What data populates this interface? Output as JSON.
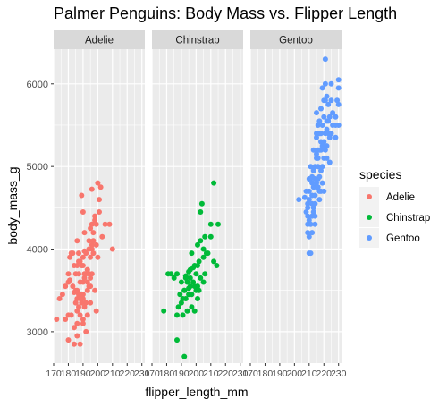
{
  "chart_data": {
    "type": "scatter",
    "title": "Palmer Penguins: Body Mass vs. Flipper Length",
    "xlabel": "flipper_length_mm",
    "ylabel": "body_mass_g",
    "facet_by": "species",
    "xlim": [
      170,
      232
    ],
    "ylim": [
      2620,
      6420
    ],
    "x_ticks": [
      170,
      180,
      190,
      200,
      210,
      220,
      230
    ],
    "y_ticks": [
      3000,
      4000,
      5000,
      6000
    ],
    "grid": true,
    "legend": {
      "title": "species",
      "position": "right",
      "entries": [
        {
          "label": "Adelie",
          "color": "#F8766D"
        },
        {
          "label": "Chinstrap",
          "color": "#00BA38"
        },
        {
          "label": "Gentoo",
          "color": "#619CFF"
        }
      ]
    },
    "panels": [
      {
        "label": "Adelie",
        "color": "#F8766D",
        "points": [
          [
            172,
            3150
          ],
          [
            174,
            3400
          ],
          [
            176,
            3450
          ],
          [
            178,
            3550
          ],
          [
            178,
            3150
          ],
          [
            180,
            3700
          ],
          [
            180,
            3200
          ],
          [
            180,
            3600
          ],
          [
            181,
            3625
          ],
          [
            181,
            3900
          ],
          [
            182,
            3950
          ],
          [
            182,
            3200
          ],
          [
            183,
            3550
          ],
          [
            183,
            3950
          ],
          [
            184,
            3800
          ],
          [
            184,
            3050
          ],
          [
            184,
            3475
          ],
          [
            185,
            3700
          ],
          [
            185,
            3350
          ],
          [
            185,
            3500
          ],
          [
            186,
            3500
          ],
          [
            186,
            3800
          ],
          [
            186,
            3100
          ],
          [
            186,
            3250
          ],
          [
            187,
            3450
          ],
          [
            187,
            3950
          ],
          [
            187,
            3300
          ],
          [
            187,
            3700
          ],
          [
            187,
            3850
          ],
          [
            188,
            3400
          ],
          [
            188,
            3200
          ],
          [
            188,
            3600
          ],
          [
            189,
            3350
          ],
          [
            189,
            4650
          ],
          [
            189,
            3800
          ],
          [
            189,
            3450
          ],
          [
            190,
            3450
          ],
          [
            190,
            3150
          ],
          [
            190,
            3600
          ],
          [
            190,
            3900
          ],
          [
            190,
            3800
          ],
          [
            190,
            3100
          ],
          [
            191,
            3700
          ],
          [
            191,
            3300
          ],
          [
            191,
            3650
          ],
          [
            191,
            3975
          ],
          [
            191,
            4200
          ],
          [
            192,
            3350
          ],
          [
            192,
            3700
          ],
          [
            192,
            3000
          ],
          [
            193,
            3750
          ],
          [
            193,
            3600
          ],
          [
            193,
            3200
          ],
          [
            193,
            3500
          ],
          [
            194,
            3700
          ],
          [
            194,
            4000
          ],
          [
            195,
            3550
          ],
          [
            195,
            3900
          ],
          [
            195,
            3350
          ],
          [
            195,
            3650
          ],
          [
            195,
            4250
          ],
          [
            196,
            4000
          ],
          [
            196,
            3700
          ],
          [
            196,
            4050
          ],
          [
            196,
            4300
          ],
          [
            197,
            4100
          ],
          [
            197,
            4200
          ],
          [
            198,
            3500
          ],
          [
            198,
            4400
          ],
          [
            199,
            4050
          ],
          [
            199,
            4300
          ],
          [
            200,
            3900
          ],
          [
            201,
            4450
          ],
          [
            201,
            4600
          ],
          [
            202,
            4750
          ],
          [
            205,
            4300
          ],
          [
            208,
            4300
          ],
          [
            210,
            4000
          ],
          [
            180,
            2900
          ],
          [
            184,
            2850
          ],
          [
            186,
            3400
          ],
          [
            188,
            3850
          ],
          [
            190,
            4450
          ],
          [
            192,
            3950
          ],
          [
            194,
            4100
          ],
          [
            196,
            4725
          ],
          [
            198,
            4350
          ],
          [
            200,
            4800
          ],
          [
            186,
            4100
          ],
          [
            190,
            3400
          ],
          [
            194,
            3550
          ],
          [
            197,
            3950
          ],
          [
            199,
            3250
          ],
          [
            203,
            4150
          ],
          [
            186,
            2950
          ],
          [
            188,
            2850
          ]
        ]
      },
      {
        "label": "Chinstrap",
        "color": "#00BA38",
        "points": [
          [
            178,
            3250
          ],
          [
            181,
            3700
          ],
          [
            183,
            3700
          ],
          [
            185,
            3650
          ],
          [
            187,
            3700
          ],
          [
            187,
            2900
          ],
          [
            188,
            3300
          ],
          [
            189,
            3450
          ],
          [
            190,
            3350
          ],
          [
            190,
            3600
          ],
          [
            191,
            3400
          ],
          [
            191,
            3200
          ],
          [
            192,
            3500
          ],
          [
            192,
            2700
          ],
          [
            193,
            3650
          ],
          [
            193,
            3400
          ],
          [
            194,
            3600
          ],
          [
            194,
            3250
          ],
          [
            195,
            3450
          ],
          [
            195,
            3725
          ],
          [
            195,
            3525
          ],
          [
            196,
            3650
          ],
          [
            196,
            3550
          ],
          [
            197,
            3450
          ],
          [
            197,
            3300
          ],
          [
            198,
            3775
          ],
          [
            198,
            3600
          ],
          [
            199,
            3800
          ],
          [
            199,
            3250
          ],
          [
            200,
            3500
          ],
          [
            200,
            3700
          ],
          [
            201,
            3550
          ],
          [
            201,
            3400
          ],
          [
            201,
            4050
          ],
          [
            202,
            3850
          ],
          [
            202,
            3500
          ],
          [
            203,
            4100
          ],
          [
            203,
            3650
          ],
          [
            205,
            4000
          ],
          [
            205,
            3900
          ],
          [
            206,
            4150
          ],
          [
            206,
            3700
          ],
          [
            207,
            3950
          ],
          [
            210,
            4300
          ],
          [
            212,
            3850
          ],
          [
            212,
            4800
          ],
          [
            214,
            3800
          ],
          [
            215,
            4300
          ],
          [
            196,
            3750
          ],
          [
            197,
            3950
          ],
          [
            199,
            3550
          ],
          [
            201,
            3800
          ],
          [
            203,
            4450
          ],
          [
            204,
            4550
          ],
          [
            205,
            3600
          ],
          [
            208,
            3950
          ],
          [
            210,
            4150
          ],
          [
            192,
            3500
          ],
          [
            193,
            3675
          ],
          [
            187,
            3200
          ]
        ]
      },
      {
        "label": "Gentoo",
        "color": "#619CFF",
        "points": [
          [
            203,
            4600
          ],
          [
            207,
            4625
          ],
          [
            208,
            4700
          ],
          [
            209,
            4400
          ],
          [
            209,
            4550
          ],
          [
            209,
            4500
          ],
          [
            210,
            4150
          ],
          [
            210,
            4700
          ],
          [
            210,
            4600
          ],
          [
            210,
            4350
          ],
          [
            210,
            3950
          ],
          [
            211,
            4850
          ],
          [
            211,
            4300
          ],
          [
            212,
            4875
          ],
          [
            212,
            4550
          ],
          [
            212,
            4650
          ],
          [
            212,
            4800
          ],
          [
            213,
            4500
          ],
          [
            213,
            4750
          ],
          [
            213,
            4450
          ],
          [
            214,
            4400
          ],
          [
            214,
            4650
          ],
          [
            214,
            4850
          ],
          [
            214,
            5000
          ],
          [
            215,
            4750
          ],
          [
            215,
            5150
          ],
          [
            215,
            5400
          ],
          [
            215,
            4800
          ],
          [
            215,
            5100
          ],
          [
            215,
            5650
          ],
          [
            216,
            4850
          ],
          [
            216,
            5000
          ],
          [
            216,
            4750
          ],
          [
            216,
            5100
          ],
          [
            217,
            5200
          ],
          [
            217,
            4875
          ],
          [
            217,
            4700
          ],
          [
            217,
            5400
          ],
          [
            217,
            4600
          ],
          [
            218,
            5300
          ],
          [
            218,
            4700
          ],
          [
            218,
            4950
          ],
          [
            218,
            5700
          ],
          [
            219,
            5000
          ],
          [
            219,
            5500
          ],
          [
            219,
            5250
          ],
          [
            220,
            5100
          ],
          [
            220,
            5300
          ],
          [
            220,
            5800
          ],
          [
            220,
            4700
          ],
          [
            221,
            5800
          ],
          [
            221,
            5200
          ],
          [
            221,
            5400
          ],
          [
            221,
            6300
          ],
          [
            222,
            5550
          ],
          [
            222,
            5100
          ],
          [
            222,
            5850
          ],
          [
            222,
            5250
          ],
          [
            223,
            5550
          ],
          [
            223,
            5400
          ],
          [
            224,
            5350
          ],
          [
            224,
            5600
          ],
          [
            225,
            5800
          ],
          [
            225,
            5400
          ],
          [
            226,
            5650
          ],
          [
            228,
            5500
          ],
          [
            228,
            5600
          ],
          [
            229,
            5800
          ],
          [
            230,
            5500
          ],
          [
            230,
            6050
          ],
          [
            230,
            5950
          ],
          [
            230,
            5750
          ],
          [
            208,
            4450
          ],
          [
            209,
            4200
          ],
          [
            210,
            4850
          ],
          [
            211,
            5000
          ],
          [
            212,
            4400
          ],
          [
            213,
            5200
          ],
          [
            214,
            4300
          ],
          [
            215,
            5350
          ],
          [
            216,
            5200
          ],
          [
            217,
            5550
          ],
          [
            218,
            5400
          ],
          [
            219,
            5950
          ],
          [
            220,
            5600
          ],
          [
            221,
            6000
          ],
          [
            222,
            5450
          ],
          [
            223,
            5750
          ],
          [
            224,
            5050
          ],
          [
            225,
            6000
          ],
          [
            226,
            5500
          ],
          [
            228,
            5350
          ],
          [
            211,
            3950
          ],
          [
            209,
            4300
          ],
          [
            212,
            4200
          ],
          [
            213,
            4950
          ],
          [
            214,
            4550
          ],
          [
            216,
            5500
          ],
          [
            218,
            5200
          ],
          [
            219,
            4800
          ]
        ]
      }
    ]
  }
}
